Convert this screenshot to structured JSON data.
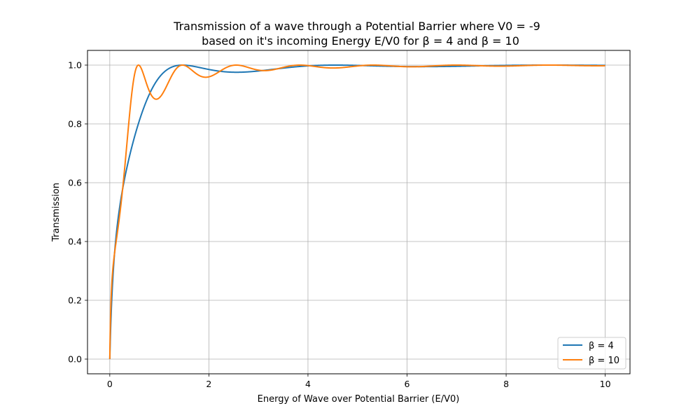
{
  "chart_data": {
    "type": "line",
    "title": "Transmission of a wave through a Potential Barrier where V0 = -9",
    "subtitle": "based on it's incoming Energy E/V0 for β = 4 and β = 10",
    "xlabel": "Energy of Wave over Potential Barrier (E/V0)",
    "ylabel": "Transmission",
    "xlim": [
      -0.45,
      10.5
    ],
    "ylim": [
      -0.05,
      1.05
    ],
    "xticks": [
      0,
      2,
      4,
      6,
      8,
      10
    ],
    "yticks": [
      0.0,
      0.2,
      0.4,
      0.6,
      0.8,
      1.0
    ],
    "xtick_labels": [
      "0",
      "2",
      "4",
      "6",
      "8",
      "10"
    ],
    "ytick_labels": [
      "0.0",
      "0.2",
      "0.4",
      "0.6",
      "0.8",
      "1.0"
    ],
    "grid": true,
    "legend_position": "bottom-right",
    "series": [
      {
        "name": "β = 4",
        "beta": 4,
        "color": "#1f77b4"
      },
      {
        "name": "β = 10",
        "beta": 10,
        "color": "#ff7f0e"
      }
    ],
    "x_range": [
      0,
      10
    ]
  }
}
